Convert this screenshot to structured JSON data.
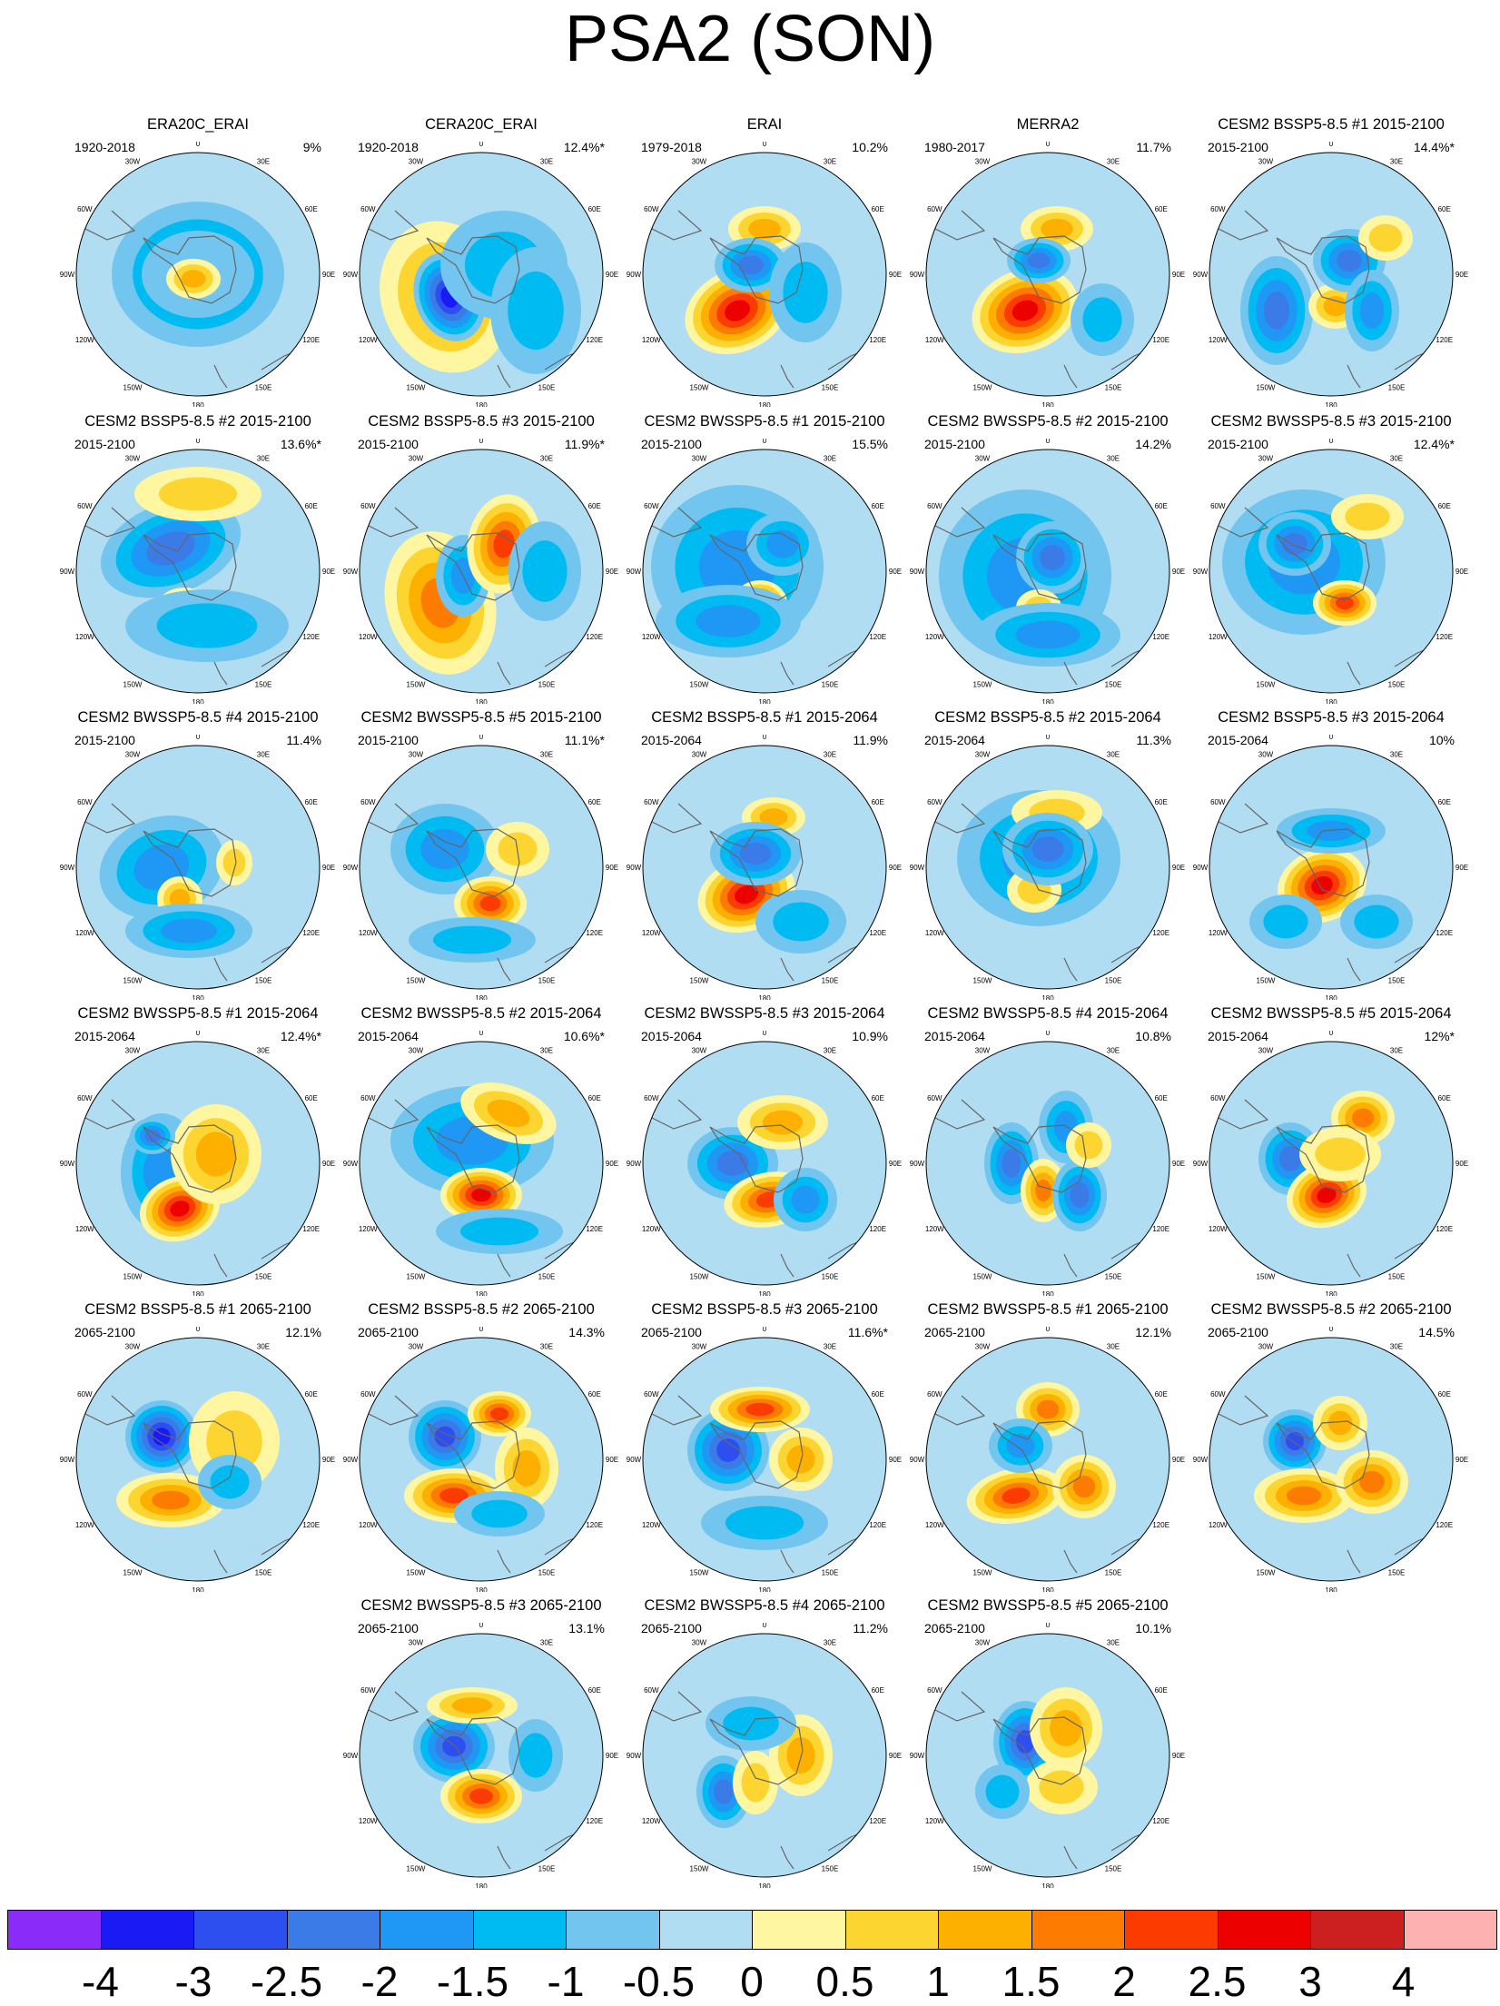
{
  "title": "PSA2 (SON)",
  "degree_labels": [
    "0",
    "30E",
    "60E",
    "90E",
    "120E",
    "150E",
    "180",
    "150W",
    "120W",
    "90W",
    "60W",
    "30W"
  ],
  "panels": [
    {
      "title": "ERA20C_ERAI",
      "period": "1920-2018",
      "variance": "9%"
    },
    {
      "title": "CERA20C_ERAI",
      "period": "1920-2018",
      "variance": "12.4%*"
    },
    {
      "title": "ERAI",
      "period": "1979-2018",
      "variance": "10.2%"
    },
    {
      "title": "MERRA2",
      "period": "1980-2017",
      "variance": "11.7%"
    },
    {
      "title": "CESM2 BSSP5-8.5 #1 2015-2100",
      "period": "2015-2100",
      "variance": "14.4%*"
    },
    {
      "title": "CESM2 BSSP5-8.5 #2 2015-2100",
      "period": "2015-2100",
      "variance": "13.6%*"
    },
    {
      "title": "CESM2 BSSP5-8.5 #3 2015-2100",
      "period": "2015-2100",
      "variance": "11.9%*"
    },
    {
      "title": "CESM2 BWSSP5-8.5 #1 2015-2100",
      "period": "2015-2100",
      "variance": "15.5%"
    },
    {
      "title": "CESM2 BWSSP5-8.5 #2 2015-2100",
      "period": "2015-2100",
      "variance": "14.2%"
    },
    {
      "title": "CESM2 BWSSP5-8.5 #3 2015-2100",
      "period": "2015-2100",
      "variance": "12.4%*"
    },
    {
      "title": "CESM2 BWSSP5-8.5 #4 2015-2100",
      "period": "2015-2100",
      "variance": "11.4%"
    },
    {
      "title": "CESM2 BWSSP5-8.5 #5 2015-2100",
      "period": "2015-2100",
      "variance": "11.1%*"
    },
    {
      "title": "CESM2 BSSP5-8.5 #1 2015-2064",
      "period": "2015-2064",
      "variance": "11.9%"
    },
    {
      "title": "CESM2 BSSP5-8.5 #2 2015-2064",
      "period": "2015-2064",
      "variance": "11.3%"
    },
    {
      "title": "CESM2 BSSP5-8.5 #3 2015-2064",
      "period": "2015-2064",
      "variance": "10%"
    },
    {
      "title": "CESM2 BWSSP5-8.5 #1 2015-2064",
      "period": "2015-2064",
      "variance": "12.4%*"
    },
    {
      "title": "CESM2 BWSSP5-8.5 #2 2015-2064",
      "period": "2015-2064",
      "variance": "10.6%*"
    },
    {
      "title": "CESM2 BWSSP5-8.5 #3 2015-2064",
      "period": "2015-2064",
      "variance": "10.9%"
    },
    {
      "title": "CESM2 BWSSP5-8.5 #4 2015-2064",
      "period": "2015-2064",
      "variance": "10.8%"
    },
    {
      "title": "CESM2 BWSSP5-8.5 #5 2015-2064",
      "period": "2015-2064",
      "variance": "12%*"
    },
    {
      "title": "CESM2 BSSP5-8.5 #1 2065-2100",
      "period": "2065-2100",
      "variance": "12.1%"
    },
    {
      "title": "CESM2 BSSP5-8.5 #2 2065-2100",
      "period": "2065-2100",
      "variance": "14.3%"
    },
    {
      "title": "CESM2 BSSP5-8.5 #3 2065-2100",
      "period": "2065-2100",
      "variance": "11.6%*"
    },
    {
      "title": "CESM2 BWSSP5-8.5 #1 2065-2100",
      "period": "2065-2100",
      "variance": "12.1%"
    },
    {
      "title": "CESM2 BWSSP5-8.5 #2 2065-2100",
      "period": "2065-2100",
      "variance": "14.5%"
    },
    {
      "title": "CESM2 BWSSP5-8.5 #3 2065-2100",
      "period": "2065-2100",
      "variance": "13.1%"
    },
    {
      "title": "CESM2 BWSSP5-8.5 #4 2065-2100",
      "period": "2065-2100",
      "variance": "11.2%"
    },
    {
      "title": "CESM2 BWSSP5-8.5 #5 2065-2100",
      "period": "2065-2100",
      "variance": "10.1%"
    }
  ],
  "colorbar": {
    "colors": [
      "#8a2bfa",
      "#1a1af5",
      "#2e4ff0",
      "#3b7be8",
      "#1f97f5",
      "#00bbf2",
      "#72c5ef",
      "#b1ddf2",
      "#fef6a0",
      "#fdd530",
      "#fdb000",
      "#fd7b00",
      "#fc3b00",
      "#ec0000",
      "#cc1f1f",
      "#fdb1b1"
    ],
    "labels": [
      "-4",
      "-3",
      "-2.5",
      "-2",
      "-1.5",
      "-1",
      "-0.5",
      "0",
      "0.5",
      "1",
      "1.5",
      "2",
      "2.5",
      "3",
      "4"
    ]
  }
}
